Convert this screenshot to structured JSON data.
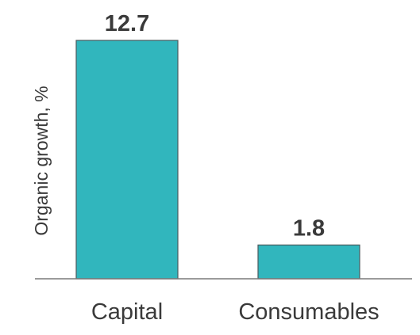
{
  "chart_data": {
    "type": "bar",
    "categories": [
      "Capital",
      "Consumables"
    ],
    "values": [
      12.7,
      1.8
    ],
    "value_labels": [
      "12.7",
      "1.8"
    ],
    "ylabel": "Organic growth, %",
    "ylim": [
      0,
      12.7
    ],
    "grid": false,
    "legend": "none",
    "colors": {
      "bar": "#31b6bd",
      "bar_stroke": "#4a5b5e",
      "axis": "#7a7a7a",
      "text": "#3a3a3a"
    }
  }
}
